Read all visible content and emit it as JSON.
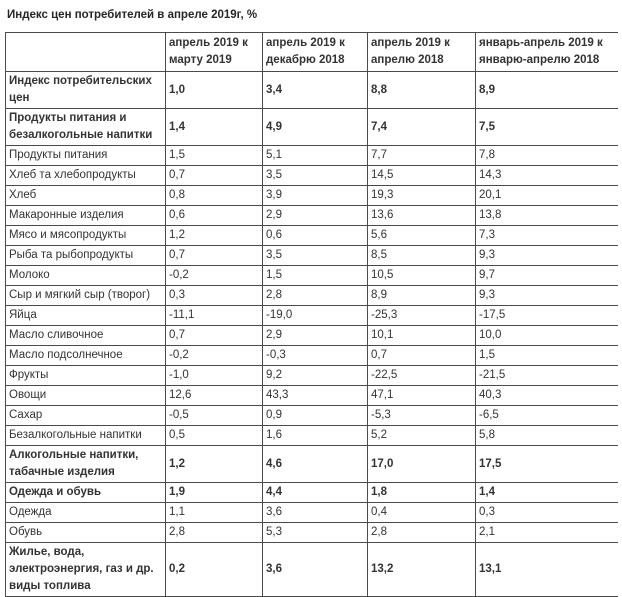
{
  "title": "Индекс цен потребителей в апреле 2019г, %",
  "table": {
    "columns": [
      "",
      "апрель 2019 к марту 2019",
      "апрель 2019 к декабрю 2018",
      "апрель 2019 к апрелю 2018",
      "январь-апрель 2019 к январю-апрелю 2018"
    ],
    "rows": [
      {
        "label": "Индекс потребительских цен",
        "bold": true,
        "lines": 2,
        "values": [
          "1,0",
          "3,4",
          "8,8",
          "8,9"
        ]
      },
      {
        "label": "Продукты питания и безалкогольные напитки",
        "bold": true,
        "lines": 2,
        "values": [
          "1,4",
          "4,9",
          "7,4",
          "7,5"
        ]
      },
      {
        "label": "Продукты питания",
        "bold": false,
        "lines": 1,
        "values": [
          "1,5",
          "5,1",
          "7,7",
          "7,8"
        ]
      },
      {
        "label": "Хлеб та хлебопродукты",
        "bold": false,
        "lines": 1,
        "values": [
          "0,7",
          "3,5",
          "14,5",
          "14,3"
        ]
      },
      {
        "label": "Хлеб",
        "bold": false,
        "lines": 1,
        "values": [
          "0,8",
          "3,9",
          "19,3",
          "20,1"
        ]
      },
      {
        "label": "Макаронные изделия",
        "bold": false,
        "lines": 1,
        "values": [
          "0,6",
          "2,9",
          "13,6",
          "13,8"
        ]
      },
      {
        "label": "Мясо и мясопродукты",
        "bold": false,
        "lines": 1,
        "values": [
          "1,2",
          "0,6",
          "5,6",
          "7,3"
        ]
      },
      {
        "label": "Рыба та рыбопродукты",
        "bold": false,
        "lines": 1,
        "values": [
          "0,7",
          "3,5",
          "8,5",
          "9,3"
        ]
      },
      {
        "label": "Молоко",
        "bold": false,
        "lines": 1,
        "values": [
          "-0,2",
          "1,5",
          "10,5",
          "9,7"
        ]
      },
      {
        "label": "Сыр и мягкий сыр (творог)",
        "bold": false,
        "lines": 1,
        "values": [
          "0,3",
          "2,8",
          "8,9",
          "9,3"
        ]
      },
      {
        "label": "Яйца",
        "bold": false,
        "lines": 1,
        "values": [
          "-11,1",
          "-19,0",
          "-25,3",
          "-17,5"
        ]
      },
      {
        "label": "Масло сливочное",
        "bold": false,
        "lines": 1,
        "values": [
          "0,7",
          "2,9",
          "10,1",
          "10,0"
        ]
      },
      {
        "label": "Масло подсолнечное",
        "bold": false,
        "lines": 1,
        "values": [
          "-0,2",
          "-0,3",
          "0,7",
          "1,5"
        ]
      },
      {
        "label": "Фрукты",
        "bold": false,
        "lines": 1,
        "values": [
          "-1,0",
          "9,2",
          "-22,5",
          "-21,5"
        ]
      },
      {
        "label": "Овощи",
        "bold": false,
        "lines": 1,
        "values": [
          "12,6",
          "43,3",
          "47,1",
          "40,3"
        ]
      },
      {
        "label": "Сахар",
        "bold": false,
        "lines": 1,
        "values": [
          "-0,5",
          "0,9",
          "-5,3",
          "-6,5"
        ]
      },
      {
        "label": "Безалкогольные напитки",
        "bold": false,
        "lines": 1,
        "values": [
          "0,5",
          "1,6",
          "5,2",
          "5,8"
        ]
      },
      {
        "label": "Алкогольные напитки, табачные изделия",
        "bold": true,
        "lines": 2,
        "values": [
          "1,2",
          "4,6",
          "17,0",
          "17,5"
        ]
      },
      {
        "label": "Одежда и обувь",
        "bold": true,
        "lines": 1,
        "values": [
          "1,9",
          "4,4",
          "1,8",
          "1,4"
        ]
      },
      {
        "label": "Одежда",
        "bold": false,
        "lines": 1,
        "values": [
          "1,1",
          "3,6",
          "0,4",
          "0,3"
        ]
      },
      {
        "label": "Обувь",
        "bold": false,
        "lines": 1,
        "values": [
          "2,8",
          "5,3",
          "2,8",
          "2,1"
        ]
      },
      {
        "label": "Жилье, вода, электроэнергия, газ и др. виды топлива",
        "bold": true,
        "lines": 3,
        "values": [
          "0,2",
          "3,6",
          "13,2",
          "13,1"
        ]
      }
    ]
  },
  "colors": {
    "text": "#333333",
    "border": "#4a4a4a",
    "background": "#ffffff"
  }
}
